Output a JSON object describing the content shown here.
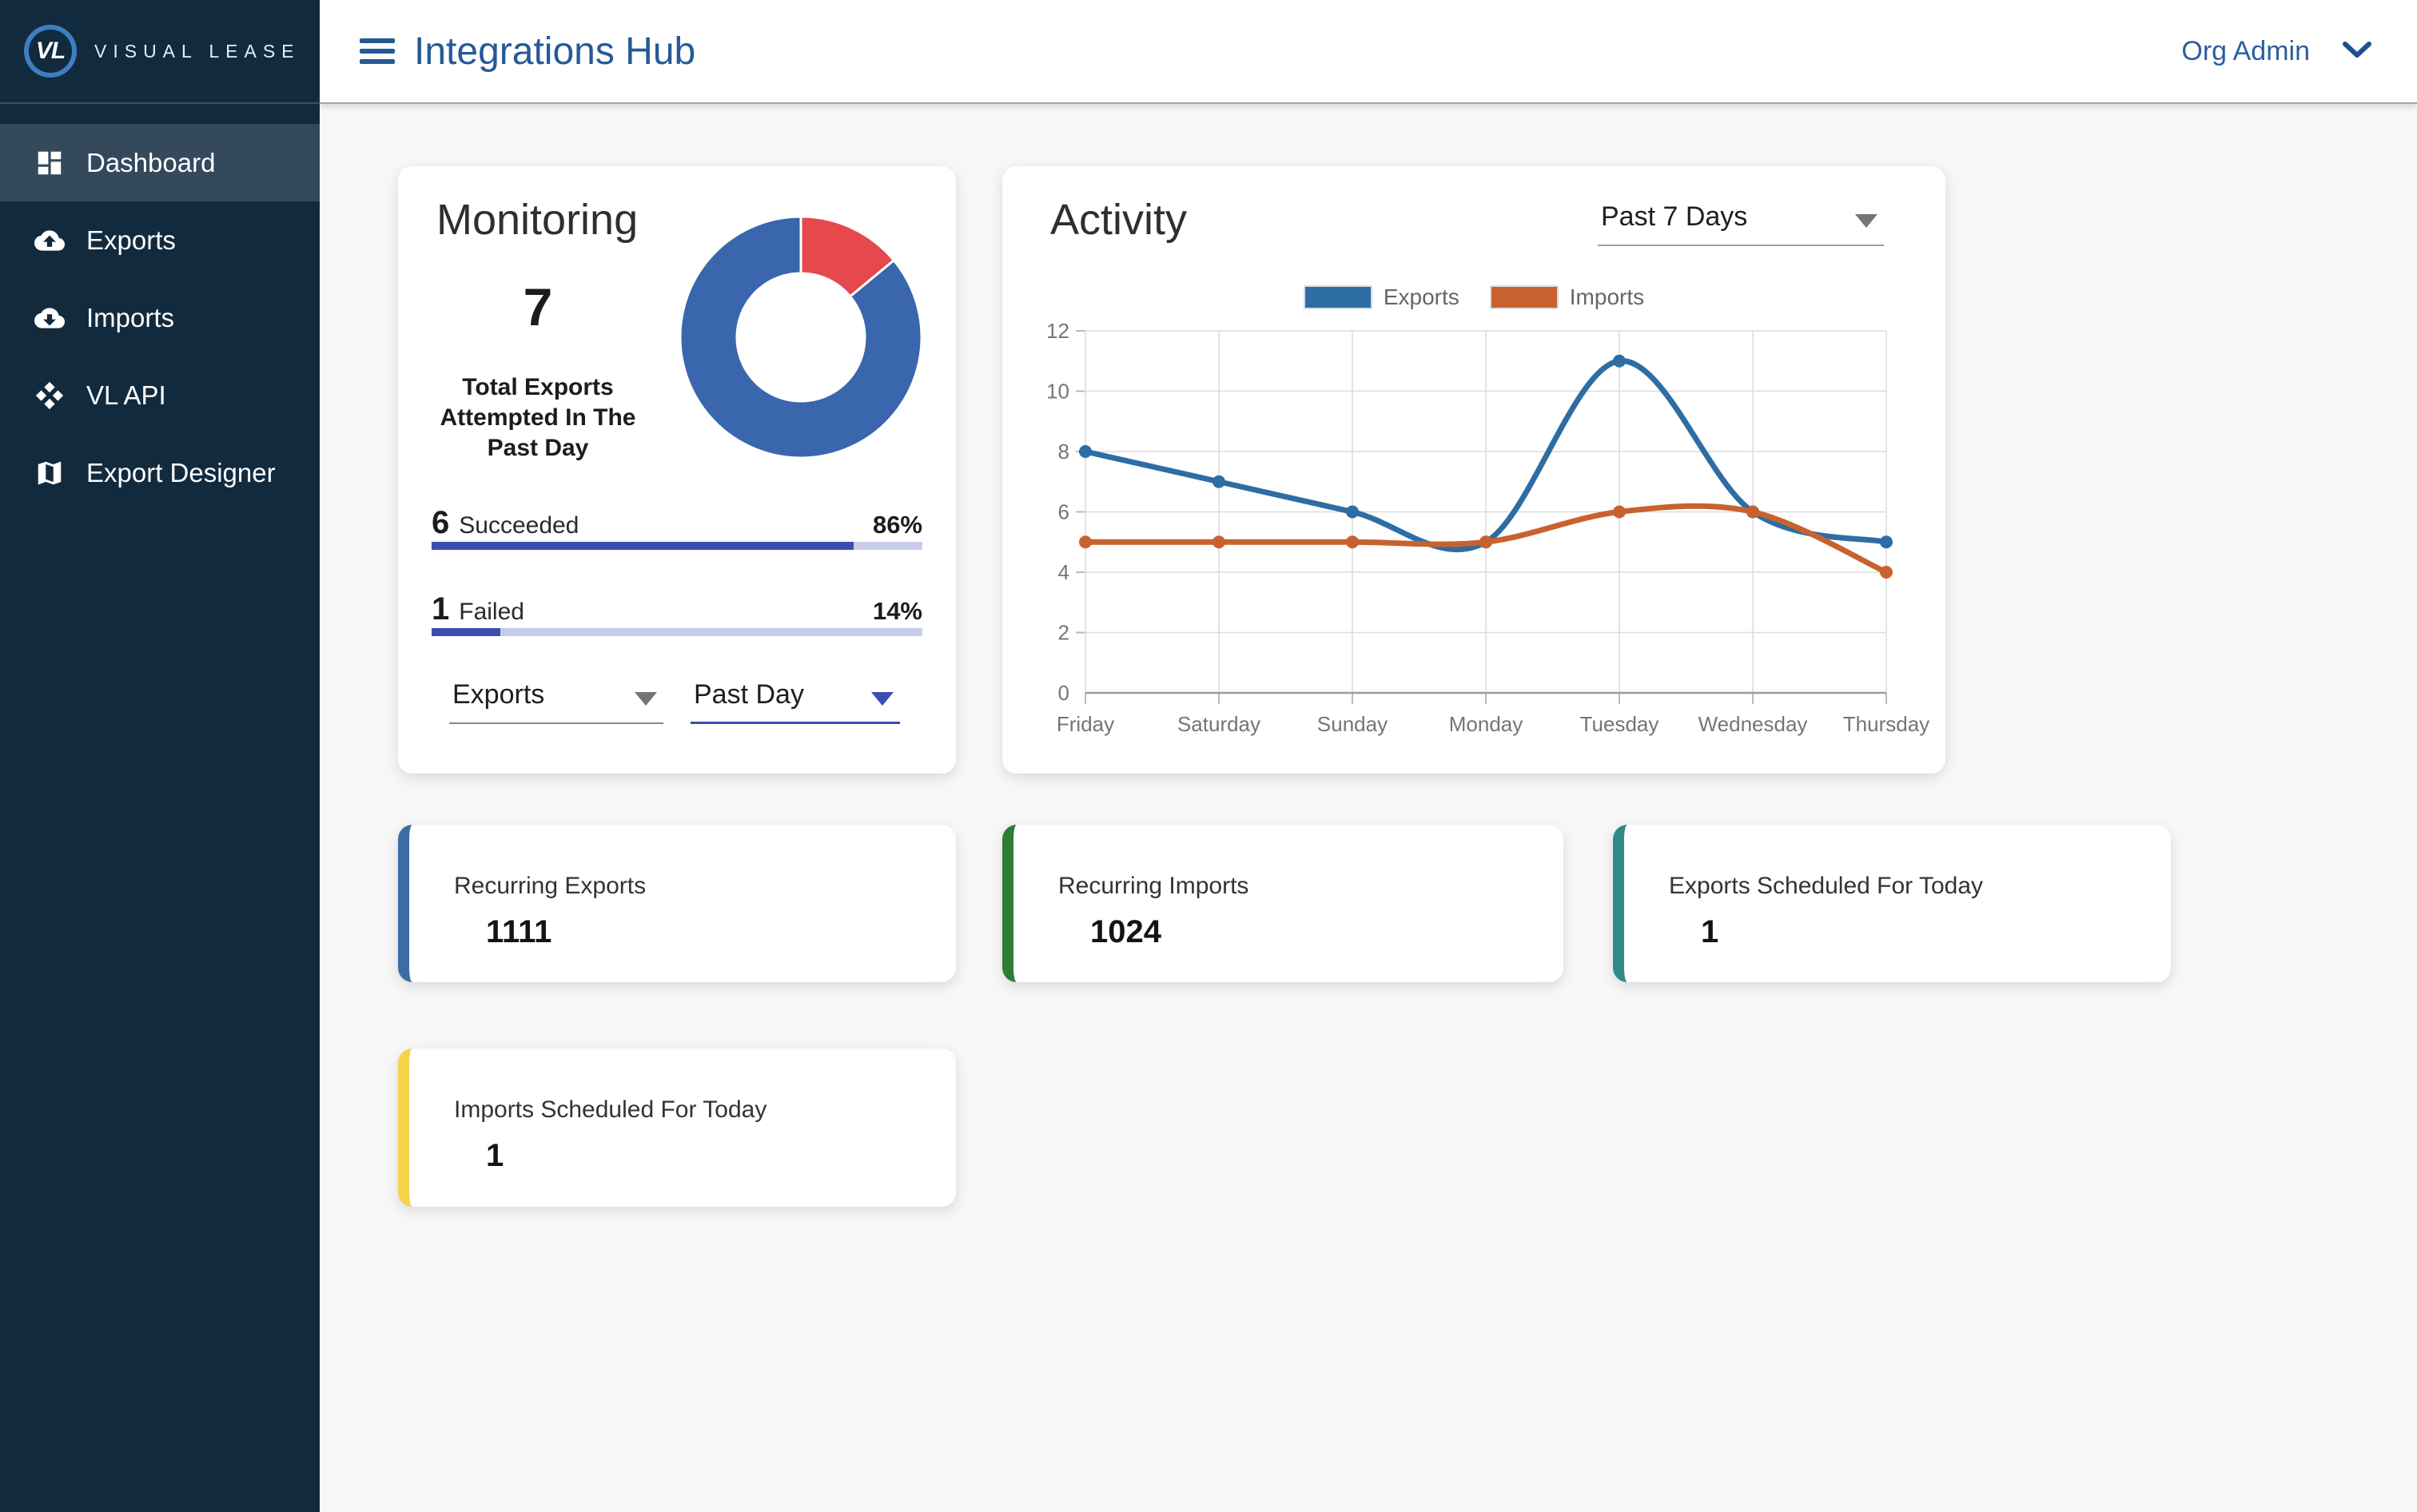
{
  "brand": {
    "logo_initials": "VL",
    "logo_text": "VISUAL LEASE"
  },
  "header": {
    "title": "Integrations Hub",
    "user_menu": "Org Admin"
  },
  "sidebar": {
    "items": [
      {
        "label": "Dashboard",
        "icon": "dashboard-icon",
        "active": true
      },
      {
        "label": "Exports",
        "icon": "cloud-upload-icon",
        "active": false
      },
      {
        "label": "Imports",
        "icon": "cloud-download-icon",
        "active": false
      },
      {
        "label": "VL API",
        "icon": "api-diamonds-icon",
        "active": false
      },
      {
        "label": "Export Designer",
        "icon": "map-icon",
        "active": false
      }
    ]
  },
  "monitoring": {
    "title": "Monitoring",
    "total": "7",
    "total_label": "Total Exports Attempted In The Past Day",
    "succeeded_count": "6",
    "succeeded_label": "Succeeded",
    "succeeded_pct": "86%",
    "succeeded_pct_value": 86,
    "failed_count": "1",
    "failed_label": "Failed",
    "failed_pct": "14%",
    "failed_pct_value": 14,
    "type_filter": "Exports",
    "range_filter": "Past Day",
    "colors": {
      "bar_fill": "#3b4db0",
      "bar_track": "#c9cdec"
    }
  },
  "activity": {
    "title": "Activity",
    "range_filter": "Past 7 Days"
  },
  "chart_data": [
    {
      "type": "pie",
      "title": "Monitoring donut",
      "slices": [
        {
          "label": "Failed",
          "value": 14,
          "color": "#e5494d"
        },
        {
          "label": "Succeeded",
          "value": 86,
          "color": "#3a66ad"
        }
      ],
      "start_angle_deg": -90,
      "direction": "clockwise",
      "inner_radius_ratio": 0.53
    },
    {
      "type": "line",
      "title": "Activity past 7 days",
      "categories": [
        "Friday",
        "Saturday",
        "Sunday",
        "Monday",
        "Tuesday",
        "Wednesday",
        "Thursday"
      ],
      "series": [
        {
          "name": "Exports",
          "color": "#2e6da4",
          "values": [
            8,
            7,
            6,
            5,
            11,
            6,
            5
          ]
        },
        {
          "name": "Imports",
          "color": "#c7622f",
          "values": [
            5,
            5,
            5,
            5,
            6,
            6,
            4
          ]
        }
      ],
      "ylim": [
        0,
        12
      ],
      "ytick_step": 2,
      "grid": true,
      "legend_position": "top",
      "smooth": true
    }
  ],
  "stat_cards": [
    {
      "label": "Recurring Exports",
      "value": "1111",
      "accent": "#3a6ea5"
    },
    {
      "label": "Recurring Imports",
      "value": "1024",
      "accent": "#2f7d33"
    },
    {
      "label": "Exports Scheduled For Today",
      "value": "1",
      "accent": "#2f8b89"
    },
    {
      "label": "Imports Scheduled For Today",
      "value": "1",
      "accent": "#f5d34b"
    }
  ]
}
